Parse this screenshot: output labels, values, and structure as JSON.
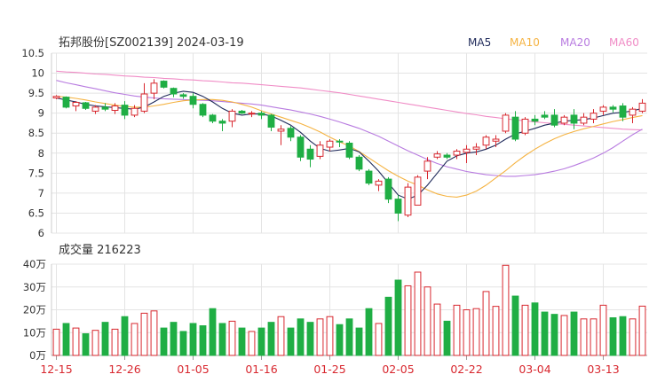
{
  "chart_data": [
    {
      "type": "candlestick",
      "title": "拓邦股份[SZ002139] 2024-03-19",
      "legend": [
        {
          "name": "MA5",
          "color": "#1f2a5a"
        },
        {
          "name": "MA10",
          "color": "#f5b342"
        },
        {
          "name": "MA20",
          "color": "#b87be0"
        },
        {
          "name": "MA60",
          "color": "#f08cc6"
        }
      ],
      "y_ticks": [
        "10.5",
        "10",
        "9.5",
        "9",
        "8.5",
        "8",
        "7.5",
        "7",
        "6.5",
        "6"
      ],
      "ylim": [
        6,
        10.5
      ],
      "up_color": "#d8282f",
      "down_color": "#1fae44",
      "ohlc": [
        [
          9.38,
          9.45,
          9.35,
          9.42
        ],
        [
          9.4,
          9.42,
          9.12,
          9.15
        ],
        [
          9.18,
          9.3,
          9.05,
          9.27
        ],
        [
          9.26,
          9.28,
          9.08,
          9.12
        ],
        [
          9.05,
          9.2,
          8.98,
          9.15
        ],
        [
          9.15,
          9.25,
          9.05,
          9.1
        ],
        [
          9.07,
          9.25,
          8.98,
          9.18
        ],
        [
          9.2,
          9.3,
          8.85,
          8.95
        ],
        [
          8.95,
          9.2,
          8.9,
          9.12
        ],
        [
          9.05,
          9.75,
          9.0,
          9.48
        ],
        [
          9.5,
          9.85,
          9.35,
          9.75
        ],
        [
          9.8,
          9.82,
          9.62,
          9.65
        ],
        [
          9.62,
          9.64,
          9.4,
          9.48
        ],
        [
          9.46,
          9.5,
          9.36,
          9.42
        ],
        [
          9.42,
          9.5,
          9.12,
          9.22
        ],
        [
          9.22,
          9.25,
          8.9,
          8.95
        ],
        [
          8.95,
          8.98,
          8.75,
          8.8
        ],
        [
          8.8,
          8.85,
          8.55,
          8.75
        ],
        [
          8.8,
          9.1,
          8.65,
          9.05
        ],
        [
          9.05,
          9.08,
          8.98,
          9.0
        ],
        [
          8.98,
          9.05,
          8.9,
          9.0
        ],
        [
          9.0,
          9.05,
          8.85,
          8.95
        ],
        [
          8.95,
          8.98,
          8.55,
          8.65
        ],
        [
          8.55,
          8.7,
          8.2,
          8.6
        ],
        [
          8.62,
          8.68,
          8.3,
          8.4
        ],
        [
          8.4,
          8.45,
          7.8,
          7.9
        ],
        [
          8.1,
          8.2,
          7.65,
          7.85
        ],
        [
          7.92,
          8.3,
          7.85,
          8.2
        ],
        [
          8.15,
          8.35,
          8.05,
          8.3
        ],
        [
          8.3,
          8.35,
          8.15,
          8.28
        ],
        [
          8.25,
          8.3,
          7.85,
          7.9
        ],
        [
          7.9,
          7.95,
          7.55,
          7.6
        ],
        [
          7.55,
          7.6,
          7.2,
          7.25
        ],
        [
          7.2,
          7.35,
          7.05,
          7.3
        ],
        [
          7.35,
          7.4,
          6.75,
          6.85
        ],
        [
          6.85,
          6.95,
          6.3,
          6.5
        ],
        [
          6.45,
          7.25,
          6.4,
          7.15
        ],
        [
          6.7,
          7.45,
          6.7,
          7.4
        ],
        [
          7.55,
          7.9,
          7.35,
          7.8
        ],
        [
          7.9,
          8.05,
          7.85,
          7.98
        ],
        [
          7.95,
          8.0,
          7.85,
          7.9
        ],
        [
          7.95,
          8.1,
          7.85,
          8.05
        ],
        [
          8.02,
          8.2,
          7.75,
          8.1
        ],
        [
          8.1,
          8.25,
          7.95,
          8.15
        ],
        [
          8.2,
          8.45,
          8.1,
          8.4
        ],
        [
          8.3,
          8.45,
          8.15,
          8.35
        ],
        [
          8.55,
          9.0,
          8.5,
          8.95
        ],
        [
          8.9,
          9.05,
          8.3,
          8.35
        ],
        [
          8.5,
          8.9,
          8.45,
          8.85
        ],
        [
          8.85,
          8.95,
          8.7,
          8.8
        ],
        [
          8.95,
          9.05,
          8.85,
          8.9
        ],
        [
          8.95,
          9.1,
          8.65,
          8.7
        ],
        [
          8.75,
          8.95,
          8.7,
          8.9
        ],
        [
          8.95,
          9.1,
          8.6,
          8.75
        ],
        [
          8.75,
          9.0,
          8.7,
          8.9
        ],
        [
          8.85,
          9.1,
          8.75,
          9.0
        ],
        [
          9.05,
          9.2,
          8.95,
          9.15
        ],
        [
          9.15,
          9.2,
          9.02,
          9.1
        ],
        [
          9.18,
          9.25,
          8.8,
          8.9
        ],
        [
          8.95,
          9.15,
          8.75,
          9.1
        ],
        [
          9.05,
          9.35,
          9.0,
          9.25
        ]
      ],
      "ma5": [
        9.38,
        9.33,
        9.28,
        9.22,
        9.18,
        9.16,
        9.14,
        9.12,
        9.1,
        9.15,
        9.28,
        9.42,
        9.5,
        9.55,
        9.52,
        9.42,
        9.28,
        9.12,
        9.0,
        8.95,
        8.98,
        8.98,
        8.93,
        8.82,
        8.7,
        8.52,
        8.3,
        8.12,
        8.05,
        8.08,
        8.12,
        8.03,
        7.8,
        7.55,
        7.25,
        6.95,
        6.85,
        6.95,
        7.2,
        7.5,
        7.8,
        7.93,
        8.0,
        8.03,
        8.1,
        8.2,
        8.35,
        8.48,
        8.55,
        8.62,
        8.7,
        8.75,
        8.8,
        8.82,
        8.84,
        8.88,
        8.94,
        9.0,
        9.02,
        9.06,
        9.12
      ],
      "ma10": [
        9.42,
        9.4,
        9.37,
        9.33,
        9.28,
        9.24,
        9.2,
        9.17,
        9.15,
        9.15,
        9.18,
        9.22,
        9.27,
        9.31,
        9.33,
        9.34,
        9.34,
        9.32,
        9.28,
        9.22,
        9.15,
        9.06,
        8.98,
        8.9,
        8.82,
        8.74,
        8.64,
        8.53,
        8.4,
        8.28,
        8.18,
        8.04,
        7.88,
        7.72,
        7.56,
        7.42,
        7.3,
        7.2,
        7.08,
        6.98,
        6.92,
        6.9,
        6.95,
        7.05,
        7.2,
        7.38,
        7.56,
        7.76,
        7.94,
        8.1,
        8.24,
        8.36,
        8.46,
        8.54,
        8.61,
        8.67,
        8.73,
        8.79,
        8.84,
        8.89,
        8.94
      ],
      "ma20": [
        9.82,
        9.76,
        9.71,
        9.66,
        9.61,
        9.56,
        9.51,
        9.47,
        9.43,
        9.4,
        9.38,
        9.36,
        9.35,
        9.34,
        9.33,
        9.32,
        9.31,
        9.29,
        9.27,
        9.25,
        9.23,
        9.2,
        9.16,
        9.12,
        9.08,
        9.03,
        8.98,
        8.92,
        8.85,
        8.78,
        8.7,
        8.62,
        8.52,
        8.42,
        8.3,
        8.18,
        8.06,
        7.95,
        7.84,
        7.74,
        7.66,
        7.6,
        7.54,
        7.5,
        7.46,
        7.44,
        7.42,
        7.42,
        7.44,
        7.46,
        7.5,
        7.55,
        7.61,
        7.69,
        7.78,
        7.88,
        8.0,
        8.14,
        8.3,
        8.46,
        8.6
      ],
      "ma60": [
        10.05,
        10.03,
        10.02,
        10.0,
        9.98,
        9.97,
        9.95,
        9.93,
        9.92,
        9.9,
        9.89,
        9.87,
        9.86,
        9.84,
        9.83,
        9.81,
        9.8,
        9.78,
        9.76,
        9.75,
        9.73,
        9.71,
        9.69,
        9.67,
        9.65,
        9.63,
        9.6,
        9.57,
        9.54,
        9.51,
        9.47,
        9.43,
        9.39,
        9.35,
        9.31,
        9.27,
        9.23,
        9.19,
        9.15,
        9.11,
        9.07,
        9.03,
        8.99,
        8.96,
        8.92,
        8.89,
        8.86,
        8.83,
        8.81,
        8.78,
        8.76,
        8.74,
        8.72,
        8.7,
        8.68,
        8.66,
        8.64,
        8.62,
        8.6,
        8.59,
        8.58
      ]
    },
    {
      "type": "bar",
      "title": "成交量 216223",
      "y_ticks": [
        "40万",
        "30万",
        "20万",
        "10万",
        "0万"
      ],
      "ylim": [
        0,
        40
      ],
      "x_ticks": [
        {
          "label": "12-15",
          "index": 0
        },
        {
          "label": "12-26",
          "index": 7
        },
        {
          "label": "01-05",
          "index": 14
        },
        {
          "label": "01-16",
          "index": 21
        },
        {
          "label": "01-25",
          "index": 28
        },
        {
          "label": "02-05",
          "index": 35
        },
        {
          "label": "02-22",
          "index": 42
        },
        {
          "label": "03-04",
          "index": 49
        },
        {
          "label": "03-13",
          "index": 56
        }
      ],
      "values": [
        11.5,
        14,
        12,
        9.5,
        11,
        14.5,
        11.5,
        17,
        14,
        18.5,
        19.5,
        12,
        14.5,
        10.5,
        14,
        13,
        20.5,
        14,
        15,
        12,
        10.5,
        12,
        14.5,
        17,
        12,
        16,
        14.5,
        16,
        17,
        13.5,
        16,
        12,
        20.5,
        14,
        25.5,
        33,
        30.5,
        36.5,
        30,
        22.5,
        15,
        22,
        20,
        20.5,
        28,
        21.5,
        39.5,
        26,
        22,
        23,
        19,
        18,
        17.5,
        19,
        16,
        16,
        22,
        16.5,
        17,
        16,
        21.6
      ]
    }
  ]
}
